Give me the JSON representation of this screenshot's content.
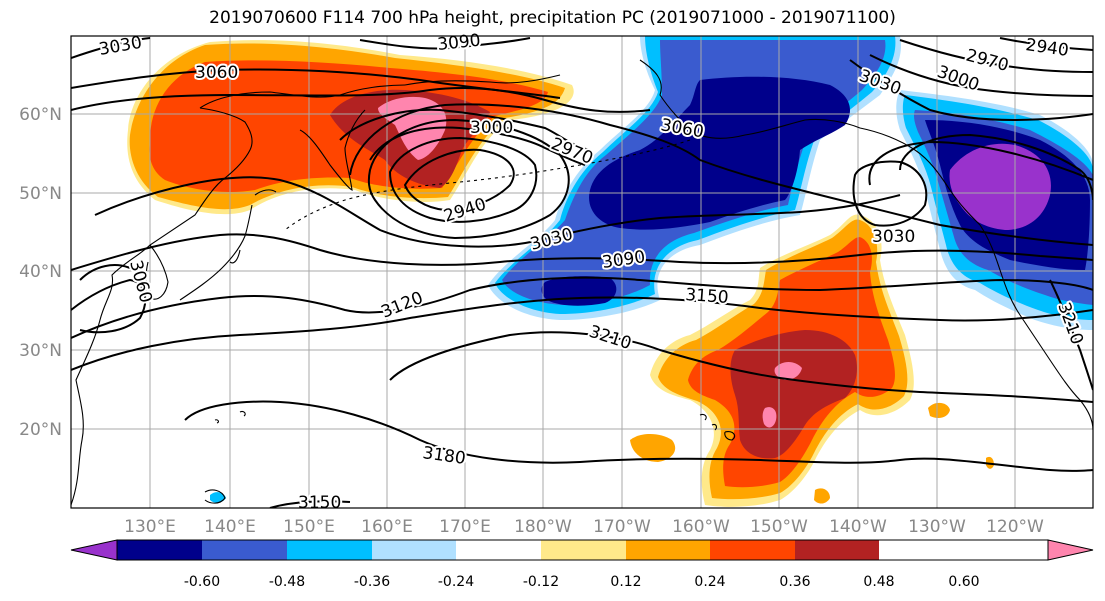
{
  "title": "2019070600 F114 700 hPa height, precipitation PC (2019071000 - 2019071100)",
  "lon_labels": [
    "130°E",
    "140°E",
    "150°E",
    "160°E",
    "170°E",
    "180°W",
    "170°W",
    "160°W",
    "150°W",
    "140°W",
    "130°W",
    "120°W"
  ],
  "lat_labels": [
    "60°N",
    "50°N",
    "40°N",
    "30°N",
    "20°N"
  ],
  "contour_labels": [
    "3030",
    "3060",
    "3090",
    "3000",
    "2970",
    "2940",
    "3030",
    "3090",
    "3120",
    "3150",
    "3210",
    "3180",
    "3060",
    "3150",
    "3030",
    "2970",
    "3000",
    "2940",
    "3030",
    "3210",
    "3060"
  ],
  "colorbar": {
    "tick_labels": [
      "-0.60",
      "-0.48",
      "-0.36",
      "-0.24",
      "-0.12",
      "0.12",
      "0.24",
      "0.36",
      "0.48",
      "0.60"
    ],
    "colors": [
      "#9932CC",
      "#00008B",
      "#3A5BCF",
      "#00BFFF",
      "#B0E0FF",
      "#FFFFFF",
      "#FFE98A",
      "#FFA500",
      "#FF4500",
      "#B22222",
      "#FF85AE"
    ]
  }
}
